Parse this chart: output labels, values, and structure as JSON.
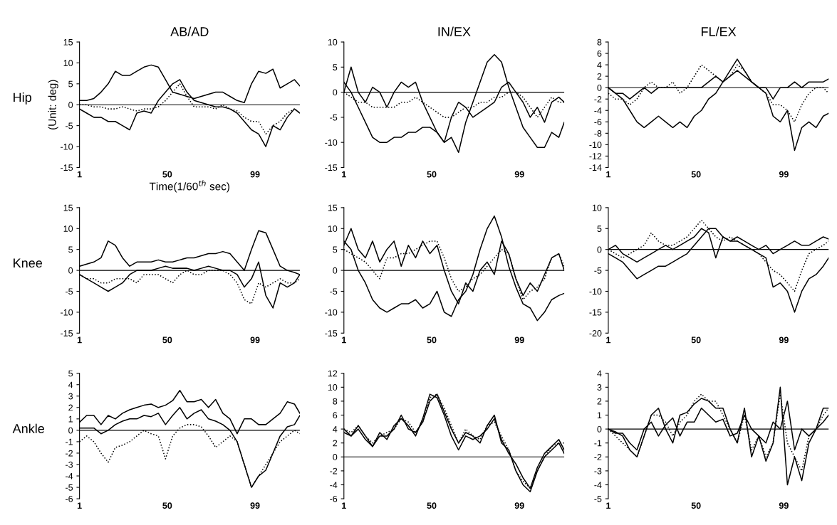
{
  "chart_data": [
    {
      "type": "line",
      "title": "AB/AD",
      "ylabel": "(Unit: deg)",
      "xlabel": "Time(1/60$^{th}$ sec)",
      "annotations": [
        "Hip"
      ],
      "x": [
        1,
        5,
        9,
        13,
        17,
        21,
        25,
        29,
        33,
        37,
        41,
        45,
        49,
        53,
        57,
        61,
        65,
        69,
        73,
        77,
        81,
        85,
        89,
        93,
        97,
        101,
        105,
        109,
        113,
        117,
        121,
        124
      ],
      "xlim": [
        1,
        124
      ],
      "xticks": [
        1,
        50,
        99
      ],
      "ylim": [
        -15,
        15
      ],
      "yticks": [
        -15,
        -10,
        -5,
        0,
        5,
        10,
        15
      ],
      "ref_lines": [
        {
          "axis": "y",
          "value": 0
        }
      ],
      "series": [
        {
          "color": "#000000",
          "line_style": "solid",
          "values": [
            1,
            1,
            1.5,
            3,
            5,
            8,
            7,
            7,
            8,
            9,
            9.5,
            9,
            6,
            3,
            2.5,
            2,
            1.5,
            2,
            2.5,
            3,
            3,
            2,
            1,
            0.5,
            5,
            8,
            7.5,
            8.5,
            4,
            5,
            6,
            4.5
          ]
        },
        {
          "color": "#000000",
          "line_style": "solid",
          "values": [
            -1,
            -2,
            -3,
            -3,
            -4,
            -4,
            -5,
            -6,
            -2,
            -1.5,
            -2,
            1,
            3,
            5,
            6,
            3,
            1,
            0.5,
            0,
            -0.5,
            -0.5,
            -1,
            -2,
            -4,
            -6,
            -7,
            -10,
            -5,
            -6,
            -3,
            -1,
            -2
          ]
        },
        {
          "color": "#000000",
          "line_style": "dotted",
          "values": [
            0,
            0,
            -0.5,
            -0.5,
            -1,
            -1,
            -0.5,
            -1,
            -1.5,
            -1,
            -1,
            -0.5,
            1,
            3,
            5,
            2,
            -0.5,
            -0.5,
            -0.5,
            -1,
            0,
            -1,
            -1.5,
            -3,
            -4,
            -4,
            -7,
            -5,
            -4,
            -2,
            -1,
            -2
          ]
        }
      ]
    },
    {
      "type": "line",
      "title": "IN/EX",
      "x": [
        1,
        5,
        9,
        13,
        17,
        21,
        25,
        29,
        33,
        37,
        41,
        45,
        49,
        53,
        57,
        61,
        65,
        69,
        73,
        77,
        81,
        85,
        89,
        93,
        97,
        101,
        105,
        109,
        113,
        117,
        121,
        124
      ],
      "xlim": [
        1,
        124
      ],
      "xticks": [
        1,
        50,
        99
      ],
      "ylim": [
        -15,
        10
      ],
      "yticks": [
        -15,
        -10,
        -5,
        0,
        5,
        10
      ],
      "ref_lines": [
        {
          "axis": "y",
          "value": 0
        }
      ],
      "series": [
        {
          "color": "#000000",
          "line_style": "solid",
          "values": [
            2,
            0,
            -3,
            -6,
            -9,
            -10,
            -10,
            -9,
            -9,
            -8,
            -8,
            -7,
            -7,
            -8,
            -10,
            -9,
            -12,
            -6,
            -2,
            2,
            6,
            7.5,
            6,
            1,
            -3,
            -7,
            -9,
            -11,
            -11,
            -8,
            -9,
            -6
          ]
        },
        {
          "color": "#000000",
          "line_style": "solid",
          "values": [
            0,
            5,
            0,
            -2,
            1,
            0,
            -3,
            0,
            2,
            1,
            2,
            -2,
            -5,
            -8,
            -10,
            -5,
            -2,
            -3,
            -5,
            -4,
            -3,
            -2,
            1,
            2,
            0,
            -2,
            -5,
            -3,
            -6,
            -2,
            -1,
            -2
          ]
        },
        {
          "color": "#000000",
          "line_style": "dotted",
          "values": [
            0,
            -1,
            -2,
            -2,
            -3,
            -3,
            -3,
            -3,
            -2,
            -2,
            -1,
            -2,
            -3,
            -4,
            -5,
            -5,
            -4,
            -3,
            -3,
            -2,
            -2,
            -1,
            -1,
            0,
            0,
            -1,
            -3,
            -5,
            -3,
            -1,
            -2,
            -2
          ]
        }
      ]
    },
    {
      "type": "line",
      "title": "FL/EX",
      "x": [
        1,
        5,
        9,
        13,
        17,
        21,
        25,
        29,
        33,
        37,
        41,
        45,
        49,
        53,
        57,
        61,
        65,
        69,
        73,
        77,
        81,
        85,
        89,
        93,
        97,
        101,
        105,
        109,
        113,
        117,
        121,
        124
      ],
      "xlim": [
        1,
        124
      ],
      "xticks": [
        1,
        50,
        99
      ],
      "ylim": [
        -14,
        8
      ],
      "yticks": [
        -14,
        -12,
        -10,
        -8,
        -6,
        -4,
        -2,
        0,
        2,
        4,
        6,
        8
      ],
      "ref_lines": [
        {
          "axis": "y",
          "value": 0
        }
      ],
      "series": [
        {
          "color": "#000000",
          "line_style": "solid",
          "values": [
            0,
            -1,
            -2,
            -4,
            -6,
            -7,
            -6,
            -5,
            -6,
            -7,
            -6,
            -7,
            -5,
            -4,
            -2,
            -1,
            1,
            3,
            5,
            3,
            1,
            0,
            -1,
            -5,
            -6,
            -4,
            -11,
            -7,
            -6,
            -7,
            -5,
            -4.5
          ]
        },
        {
          "color": "#000000",
          "line_style": "solid",
          "values": [
            0,
            -1,
            -1,
            -2,
            -1,
            0,
            -1,
            0,
            0,
            0,
            0,
            0,
            0,
            0,
            1,
            2,
            1,
            2,
            3,
            2,
            1,
            0,
            0,
            -2,
            0,
            0,
            1,
            0,
            1,
            1,
            1,
            1.5
          ]
        },
        {
          "color": "#000000",
          "line_style": "dotted",
          "values": [
            -1,
            -2,
            -2,
            -3,
            -2,
            0,
            1,
            0,
            0,
            1,
            -1,
            0,
            2,
            4,
            3,
            2,
            1,
            2,
            4,
            3,
            1,
            0,
            -1,
            -3,
            -3,
            -4,
            -6,
            -3,
            -1,
            0,
            0,
            -1
          ]
        }
      ]
    },
    {
      "type": "line",
      "annotations": [
        "Knee"
      ],
      "x": [
        1,
        5,
        9,
        13,
        17,
        21,
        25,
        29,
        33,
        37,
        41,
        45,
        49,
        53,
        57,
        61,
        65,
        69,
        73,
        77,
        81,
        85,
        89,
        93,
        97,
        101,
        105,
        109,
        113,
        117,
        121,
        124
      ],
      "xlim": [
        1,
        124
      ],
      "xticks": [
        1,
        50,
        99
      ],
      "ylim": [
        -15,
        15
      ],
      "yticks": [
        -15,
        -10,
        -5,
        0,
        5,
        10,
        15
      ],
      "ref_lines": [
        {
          "axis": "y",
          "value": 0
        }
      ],
      "series": [
        {
          "color": "#000000",
          "line_style": "solid",
          "values": [
            1,
            1.5,
            2,
            3,
            7,
            6,
            3,
            1,
            2,
            2,
            2,
            2.5,
            2,
            2,
            2.5,
            3,
            3,
            3.5,
            4,
            4,
            4.5,
            4,
            2,
            0,
            5,
            9.5,
            9,
            5,
            1,
            0,
            -0.5,
            -1
          ]
        },
        {
          "color": "#000000",
          "line_style": "solid",
          "values": [
            -1,
            -2,
            -3,
            -4,
            -5,
            -4,
            -3,
            -1,
            0,
            0,
            0,
            0.5,
            1,
            0.5,
            0.5,
            0.5,
            0,
            0.5,
            1,
            0.5,
            0,
            0,
            -1,
            -4,
            -2,
            2,
            -6,
            -9,
            -3,
            -4,
            -3,
            -1
          ]
        },
        {
          "color": "#000000",
          "line_style": "dotted",
          "values": [
            -1,
            -2,
            -2,
            -3,
            -3,
            -2,
            -2,
            -2,
            -3,
            -1,
            -1,
            -1,
            -2,
            -3,
            -1,
            0,
            -1,
            -1,
            0,
            0,
            0,
            -1,
            -3,
            -7,
            -8,
            -3,
            -4,
            -3,
            -2,
            -3,
            -3,
            -2
          ]
        }
      ]
    },
    {
      "type": "line",
      "x": [
        1,
        5,
        9,
        13,
        17,
        21,
        25,
        29,
        33,
        37,
        41,
        45,
        49,
        53,
        57,
        61,
        65,
        69,
        73,
        77,
        81,
        85,
        89,
        93,
        97,
        101,
        105,
        109,
        113,
        117,
        121,
        124
      ],
      "xlim": [
        1,
        124
      ],
      "xticks": [
        1,
        50,
        99
      ],
      "ylim": [
        -15,
        15
      ],
      "yticks": [
        -15,
        -10,
        -5,
        0,
        5,
        10,
        15
      ],
      "ref_lines": [
        {
          "axis": "y",
          "value": 0
        }
      ],
      "series": [
        {
          "color": "#000000",
          "line_style": "solid",
          "values": [
            7,
            5,
            0,
            -3,
            -7,
            -9,
            -10,
            -9,
            -8,
            -8,
            -7,
            -9,
            -8,
            -5,
            -10,
            -11,
            -7,
            -5,
            -1,
            5,
            10,
            13,
            8,
            1,
            -4,
            -8,
            -9,
            -12,
            -10,
            -7,
            -6,
            -5.5
          ]
        },
        {
          "color": "#000000",
          "line_style": "solid",
          "values": [
            6,
            10,
            5,
            3,
            7,
            2,
            5,
            7,
            1,
            6,
            3,
            7,
            4,
            6,
            0,
            -5,
            -8,
            -3,
            -5,
            0,
            2,
            -1,
            7,
            4,
            -2,
            -6,
            -3,
            -5,
            -1,
            3,
            4,
            0
          ]
        },
        {
          "color": "#000000",
          "line_style": "dotted",
          "values": [
            5,
            4,
            3,
            2,
            0,
            -2,
            3,
            3,
            4,
            4,
            5,
            6,
            7,
            7,
            3,
            -2,
            -5,
            -4,
            -2,
            -1,
            1,
            3,
            5,
            4,
            -2,
            -7,
            -5,
            -4,
            -2,
            3,
            4,
            1
          ]
        }
      ]
    },
    {
      "type": "line",
      "x": [
        1,
        5,
        9,
        13,
        17,
        21,
        25,
        29,
        33,
        37,
        41,
        45,
        49,
        53,
        57,
        61,
        65,
        69,
        73,
        77,
        81,
        85,
        89,
        93,
        97,
        101,
        105,
        109,
        113,
        117,
        121,
        124
      ],
      "xlim": [
        1,
        124
      ],
      "xticks": [
        1,
        50,
        99
      ],
      "ylim": [
        -20,
        10
      ],
      "yticks": [
        -20,
        -15,
        -10,
        -5,
        0,
        5,
        10
      ],
      "ref_lines": [
        {
          "axis": "y",
          "value": 0
        }
      ],
      "series": [
        {
          "color": "#000000",
          "line_style": "solid",
          "values": [
            -1,
            -2,
            -3,
            -5,
            -7,
            -6,
            -5,
            -4,
            -4,
            -3,
            -2,
            -1,
            1,
            3,
            5,
            5,
            3,
            2,
            2,
            1,
            0,
            -1,
            -2,
            -9,
            -8,
            -10,
            -15,
            -10,
            -7,
            -6,
            -4,
            -2
          ]
        },
        {
          "color": "#000000",
          "line_style": "solid",
          "values": [
            0,
            1,
            -1,
            -2,
            -3,
            -2,
            -1,
            0,
            1,
            0,
            1,
            2,
            3,
            5,
            4,
            -2,
            3,
            2,
            3,
            2,
            1,
            0,
            1,
            -1,
            0,
            1,
            2,
            1,
            1,
            2,
            3,
            2.5
          ]
        },
        {
          "color": "#000000",
          "line_style": "dotted",
          "values": [
            0,
            -1,
            -2,
            -1,
            0,
            1,
            4,
            2,
            1,
            1,
            2,
            3,
            5,
            7,
            5,
            3,
            2,
            3,
            2,
            1,
            0,
            -1,
            -3,
            -5,
            -6,
            -8,
            -10,
            -5,
            -1,
            0,
            1,
            2
          ]
        }
      ]
    },
    {
      "type": "line",
      "annotations": [
        "Ankle"
      ],
      "x": [
        1,
        5,
        9,
        13,
        17,
        21,
        25,
        29,
        33,
        37,
        41,
        45,
        49,
        53,
        57,
        61,
        65,
        69,
        73,
        77,
        81,
        85,
        89,
        93,
        97,
        101,
        105,
        109,
        113,
        117,
        121,
        124
      ],
      "xlim": [
        1,
        124
      ],
      "xticks": [
        1,
        50,
        99
      ],
      "ylim": [
        -6,
        5
      ],
      "yticks": [
        -6,
        -5,
        -4,
        -3,
        -2,
        -1,
        0,
        1,
        2,
        3,
        4,
        5
      ],
      "ref_lines": [
        {
          "axis": "y",
          "value": 0
        }
      ],
      "series": [
        {
          "color": "#000000",
          "line_style": "solid",
          "values": [
            0.7,
            1.3,
            1.3,
            0.5,
            1.3,
            1,
            1.5,
            1.8,
            2,
            2.2,
            2.3,
            2,
            2.2,
            2.6,
            3.5,
            2.5,
            2.5,
            2.7,
            2,
            2.7,
            1.5,
            1,
            -0.3,
            1,
            1,
            0.5,
            0.5,
            1,
            1.5,
            2.5,
            2.3,
            1.5
          ]
        },
        {
          "color": "#000000",
          "line_style": "solid",
          "values": [
            0.2,
            0.2,
            0.2,
            -0.3,
            0,
            0.5,
            0.8,
            1,
            1,
            1.3,
            1.2,
            1.5,
            0.5,
            1.3,
            2,
            1,
            1.5,
            1.8,
            1,
            0.8,
            0.5,
            0,
            -1,
            -3,
            -5,
            -4,
            -3.5,
            -2,
            -0.5,
            0.3,
            0.5,
            1.3
          ]
        },
        {
          "color": "#000000",
          "line_style": "dotted",
          "values": [
            -1,
            -0.5,
            -1,
            -2,
            -2.8,
            -1.5,
            -1.3,
            -1,
            -0.5,
            0,
            -0.3,
            -0.5,
            -2.5,
            -0.5,
            0.2,
            0.5,
            0.5,
            0.3,
            -0.5,
            -1.5,
            -1,
            -0.5,
            -1,
            -3,
            -5,
            -4,
            -3,
            -2,
            -1,
            -0.5,
            0,
            -0.3
          ]
        }
      ]
    },
    {
      "type": "line",
      "x": [
        1,
        5,
        9,
        13,
        17,
        21,
        25,
        29,
        33,
        37,
        41,
        45,
        49,
        53,
        57,
        61,
        65,
        69,
        73,
        77,
        81,
        85,
        89,
        93,
        97,
        101,
        105,
        109,
        113,
        117,
        121,
        124
      ],
      "xlim": [
        1,
        124
      ],
      "xticks": [
        1,
        50,
        99
      ],
      "ylim": [
        -6,
        12
      ],
      "yticks": [
        -6,
        -4,
        -2,
        0,
        2,
        4,
        6,
        8,
        10,
        12
      ],
      "ref_lines": [
        {
          "axis": "y",
          "value": 0
        }
      ],
      "series": [
        {
          "color": "#000000",
          "line_style": "solid",
          "values": [
            4,
            3,
            4.5,
            3,
            1.5,
            3,
            3,
            4,
            6,
            4,
            3.5,
            5,
            8,
            9,
            6.5,
            4,
            2,
            3.5,
            3,
            2,
            4.5,
            6,
            2,
            1,
            -2,
            -4,
            -5,
            -2,
            0,
            1,
            2,
            0.5
          ]
        },
        {
          "color": "#000000",
          "line_style": "solid",
          "values": [
            3.5,
            3,
            4,
            2.5,
            1.5,
            3.5,
            2.5,
            4.5,
            5.5,
            4.5,
            3,
            5.5,
            9,
            8.5,
            6,
            3,
            1,
            3,
            2.5,
            3,
            4,
            5.5,
            2.5,
            0.5,
            -1,
            -3,
            -4.5,
            -1.5,
            0.5,
            1.5,
            2.5,
            1
          ]
        },
        {
          "color": "#000000",
          "line_style": "dotted",
          "values": [
            4,
            3.5,
            4.5,
            3,
            2,
            3,
            3.5,
            4,
            5.5,
            5,
            3.5,
            5,
            8.5,
            9,
            7,
            4.5,
            2,
            4,
            3,
            2.5,
            4.5,
            5,
            3,
            1,
            -2,
            -3.5,
            -4.5,
            -2,
            0,
            1.5,
            2,
            2
          ]
        }
      ]
    },
    {
      "type": "line",
      "x": [
        1,
        5,
        9,
        13,
        17,
        21,
        25,
        29,
        33,
        37,
        41,
        45,
        49,
        53,
        57,
        61,
        65,
        69,
        73,
        77,
        81,
        85,
        89,
        93,
        97,
        101,
        105,
        109,
        113,
        117,
        121,
        124
      ],
      "xlim": [
        1,
        124
      ],
      "xticks": [
        1,
        50,
        99
      ],
      "ylim": [
        -5,
        4
      ],
      "yticks": [
        -5,
        -4,
        -3,
        -2,
        -1,
        0,
        1,
        2,
        3,
        4
      ],
      "ref_lines": [
        {
          "axis": "y",
          "value": 0
        }
      ],
      "series": [
        {
          "color": "#000000",
          "line_style": "solid",
          "values": [
            0,
            -0.2,
            -0.5,
            -1.5,
            -2,
            -0.5,
            1,
            1.5,
            0,
            -1,
            1,
            1.2,
            1.8,
            2.2,
            2,
            1.5,
            1.5,
            0,
            -1,
            1.5,
            -2,
            -0.5,
            -2.3,
            -1,
            3,
            -4,
            -2,
            -3.7,
            -1,
            0,
            1.5,
            1.5
          ]
        },
        {
          "color": "#000000",
          "line_style": "solid",
          "values": [
            0,
            -0.3,
            -0.3,
            -1,
            -1.5,
            0,
            0.5,
            -0.5,
            0.3,
            0.8,
            -0.5,
            0.5,
            0.5,
            1.5,
            1,
            0.5,
            0.7,
            -0.5,
            -0.3,
            1,
            0,
            -0.5,
            -1,
            0.5,
            0,
            2,
            -1.5,
            0,
            -0.5,
            0,
            0.5,
            1
          ]
        },
        {
          "color": "#000000",
          "line_style": "dotted",
          "values": [
            0,
            -0.5,
            -1,
            -1.5,
            -2,
            -0.5,
            1,
            1,
            0.5,
            -0.5,
            0.5,
            1,
            2,
            2.5,
            2,
            2,
            1,
            0,
            -1,
            1,
            -1.5,
            -0.5,
            -2,
            -1,
            2.5,
            -1,
            -2,
            -3,
            -0.5,
            0,
            1,
            1.5
          ]
        }
      ]
    }
  ]
}
